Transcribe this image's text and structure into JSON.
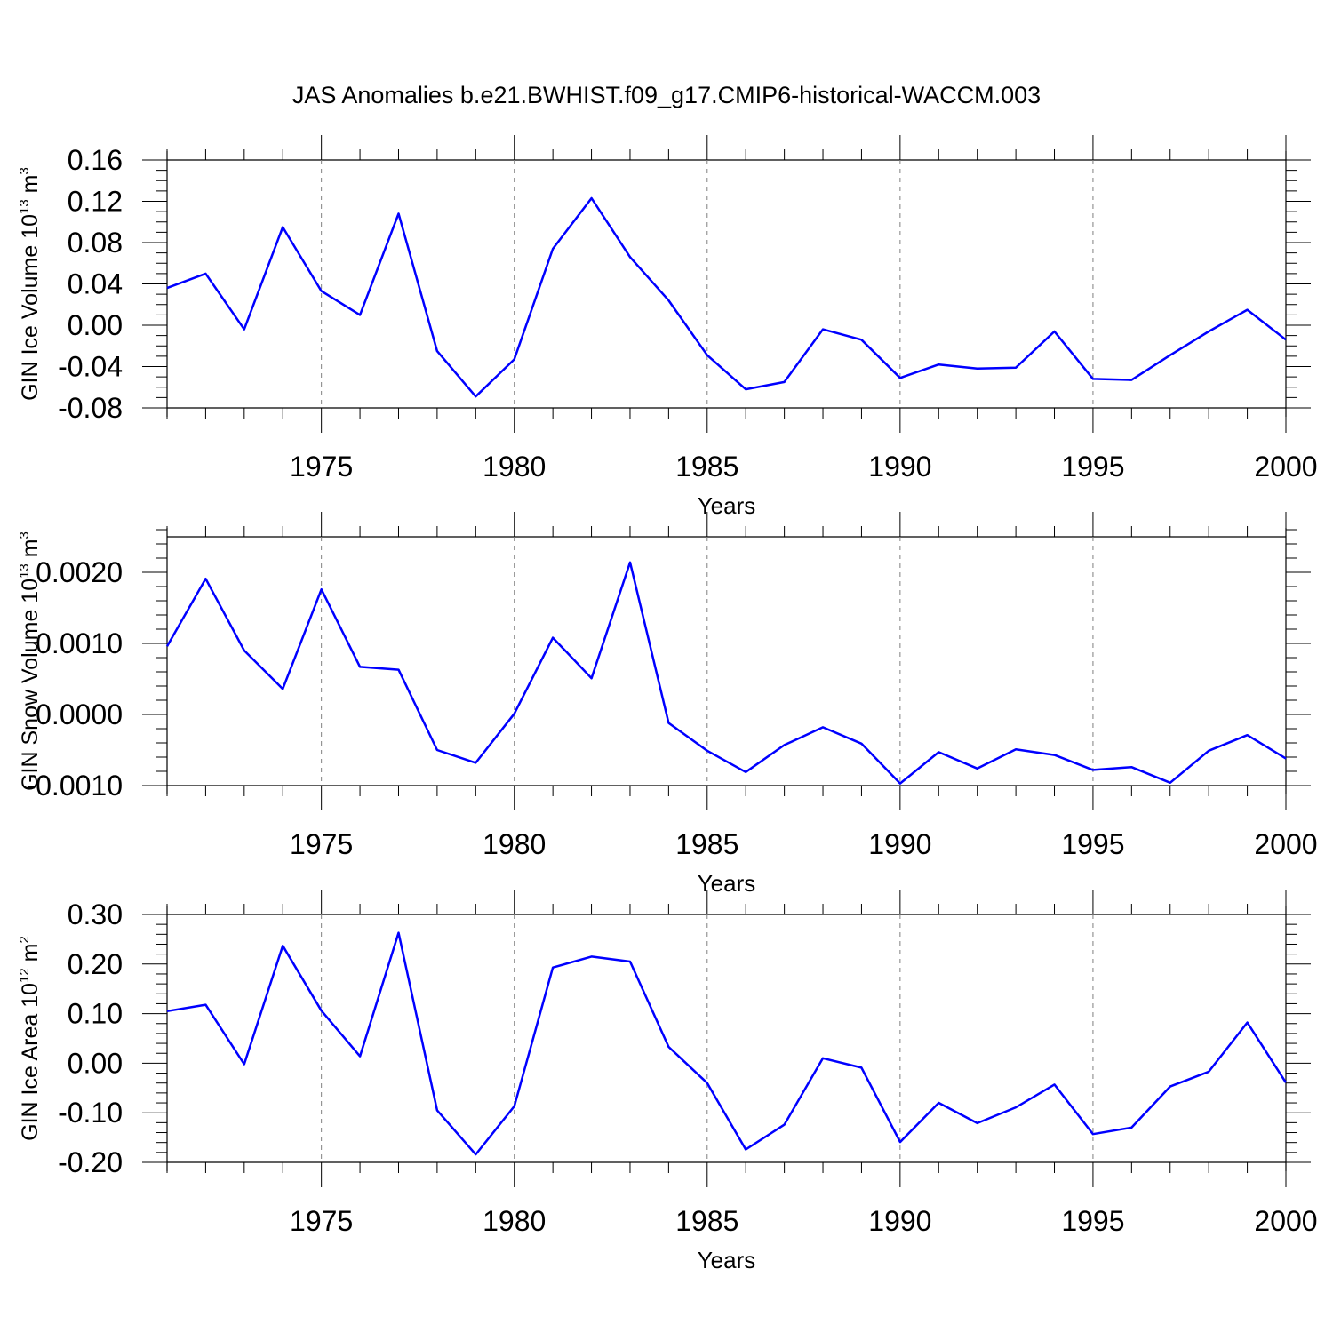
{
  "chart_data": {
    "title": "JAS Anomalies b.e21.BWHIST.f09_g17.CMIP6-historical-WACCM.003",
    "colors": {
      "series_line": "#0000ff",
      "axes": "#000000",
      "gridlines": "#808080"
    },
    "panels": [
      {
        "type": "line",
        "ylabel": {
          "text": "GIN Ice Volume 10",
          "exponent": "13",
          "unit": " m",
          "unit_exponent": "3"
        },
        "xlabel": "Years",
        "xlim": [
          1971,
          2000
        ],
        "ylim": [
          -0.08,
          0.16
        ],
        "x_tick_labels": [
          "1975",
          "1980",
          "1985",
          "1990",
          "1995",
          "2000"
        ],
        "y_tick_labels": [
          "0.16",
          "0.12",
          "0.08",
          "0.04",
          "0.00",
          "-0.04",
          "-0.08"
        ],
        "vertical_gridlines": "dashed at x ticks",
        "x": [
          1971,
          1972,
          1973,
          1974,
          1975,
          1976,
          1977,
          1978,
          1979,
          1980,
          1981,
          1982,
          1983,
          1984,
          1985,
          1986,
          1987,
          1988,
          1989,
          1990,
          1991,
          1992,
          1993,
          1994,
          1995,
          1996,
          1997,
          1998,
          1999,
          2000
        ],
        "values": [
          0.036,
          0.05,
          -0.004,
          0.095,
          0.033,
          0.01,
          0.108,
          -0.025,
          -0.069,
          -0.033,
          0.074,
          0.123,
          0.066,
          0.024,
          -0.029,
          -0.062,
          -0.055,
          -0.004,
          -0.014,
          -0.051,
          -0.038,
          -0.042,
          -0.041,
          -0.006,
          -0.052,
          -0.053,
          -0.029,
          -0.006,
          0.015,
          -0.014
        ]
      },
      {
        "type": "line",
        "ylabel": {
          "text": "GIN Snow Volume 10",
          "exponent": "13",
          "unit": " m",
          "unit_exponent": "3"
        },
        "xlabel": "Years",
        "xlim": [
          1971,
          2000
        ],
        "ylim": [
          -0.001,
          0.0025
        ],
        "x_tick_labels": [
          "1975",
          "1980",
          "1985",
          "1990",
          "1995",
          "2000"
        ],
        "y_tick_labels": [
          "0.0020",
          "0.0010",
          "0.0000",
          "-0.0010"
        ],
        "vertical_gridlines": "dashed at x ticks",
        "x": [
          1971,
          1972,
          1973,
          1974,
          1975,
          1976,
          1977,
          1978,
          1979,
          1980,
          1981,
          1982,
          1983,
          1984,
          1985,
          1986,
          1987,
          1988,
          1989,
          1990,
          1991,
          1992,
          1993,
          1994,
          1995,
          1996,
          1997,
          1998,
          1999,
          2000
        ],
        "values": [
          0.00096,
          0.00191,
          0.0009,
          0.00036,
          0.00176,
          0.00067,
          0.00063,
          -0.0005,
          -0.00068,
          1e-05,
          0.00108,
          0.00051,
          0.00214,
          -0.00012,
          -0.00051,
          -0.00081,
          -0.00043,
          -0.00018,
          -0.00041,
          -0.00097,
          -0.00053,
          -0.00076,
          -0.00049,
          -0.00057,
          -0.00078,
          -0.00074,
          -0.00096,
          -0.00051,
          -0.00029,
          -0.00062
        ]
      },
      {
        "type": "line",
        "ylabel": {
          "text": "GIN Ice Area 10",
          "exponent": "12",
          "unit": " m",
          "unit_exponent": "2"
        },
        "xlabel": "Years",
        "xlim": [
          1971,
          2000
        ],
        "ylim": [
          -0.2,
          0.3
        ],
        "x_tick_labels": [
          "1975",
          "1980",
          "1985",
          "1990",
          "1995",
          "2000"
        ],
        "y_tick_labels": [
          "0.30",
          "0.20",
          "0.10",
          "0.00",
          "-0.10",
          "-0.20"
        ],
        "vertical_gridlines": "dashed at x ticks",
        "x": [
          1971,
          1972,
          1973,
          1974,
          1975,
          1976,
          1977,
          1978,
          1979,
          1980,
          1981,
          1982,
          1983,
          1984,
          1985,
          1986,
          1987,
          1988,
          1989,
          1990,
          1991,
          1992,
          1993,
          1994,
          1995,
          1996,
          1997,
          1998,
          1999,
          2000
        ],
        "values": [
          0.105,
          0.118,
          -0.002,
          0.237,
          0.106,
          0.014,
          0.263,
          -0.095,
          -0.184,
          -0.087,
          0.193,
          0.215,
          0.205,
          0.033,
          -0.04,
          -0.174,
          -0.124,
          0.01,
          -0.009,
          -0.159,
          -0.08,
          -0.121,
          -0.089,
          -0.043,
          -0.143,
          -0.13,
          -0.047,
          -0.017,
          0.082,
          -0.039
        ]
      }
    ]
  }
}
